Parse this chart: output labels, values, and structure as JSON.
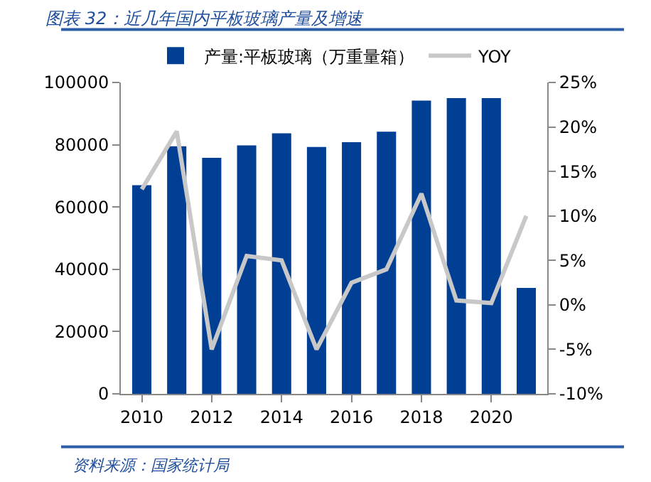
{
  "chart_data": {
    "type": "bar",
    "title": "图表 32：近几年国内平板玻璃产量及增速",
    "x": [
      2010,
      2011,
      2012,
      2013,
      2014,
      2015,
      2016,
      2017,
      2018,
      2019,
      2020,
      2021
    ],
    "series": [
      {
        "name": "产量:平板玻璃（万重量箱）",
        "color": "#003f94",
        "values": [
          67000,
          79500,
          75800,
          79800,
          83700,
          79300,
          80800,
          84200,
          94200,
          95000,
          95000,
          34000
        ]
      },
      {
        "name": "YOY",
        "type": "line",
        "axis": "y2",
        "color": "#c8c8c8",
        "values": [
          13,
          19.5,
          -5,
          5.5,
          5,
          -5,
          2.5,
          4,
          12.5,
          0.5,
          0.2,
          10
        ]
      }
    ],
    "xlim": [
      2009.4,
      2021.6
    ],
    "xticks": [
      2010,
      2012,
      2014,
      2016,
      2018,
      2020
    ],
    "ylim": [
      0,
      100000
    ],
    "yticks": [
      0,
      20000,
      40000,
      60000,
      80000,
      100000
    ],
    "y2lim": [
      -10,
      25
    ],
    "y2ticks": [
      {
        "value": -10,
        "label": "-10%"
      },
      {
        "value": -5,
        "label": "-5%"
      },
      {
        "value": 0,
        "label": "0%"
      },
      {
        "value": 5,
        "label": "5%"
      },
      {
        "value": 10,
        "label": "10%"
      },
      {
        "value": 15,
        "label": "15%"
      },
      {
        "value": 20,
        "label": "20%"
      },
      {
        "value": 25,
        "label": "25%"
      }
    ],
    "legend": "top",
    "marker": "none",
    "line_style": "solid",
    "annotations": [
      "资料来源：国家统计局"
    ]
  }
}
